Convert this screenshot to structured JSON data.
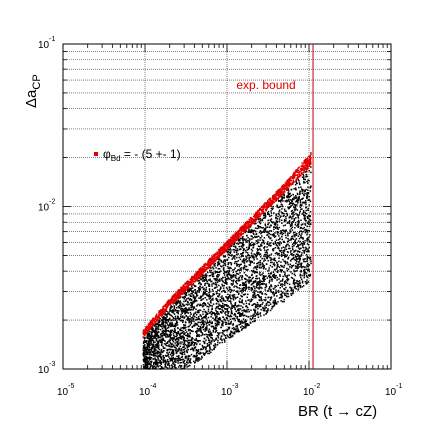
{
  "chart_data": {
    "type": "scatter",
    "xscale": "log",
    "yscale": "log",
    "xlim": [
      1e-05,
      0.1
    ],
    "ylim": [
      0.001,
      0.1
    ],
    "grid": true,
    "xlabel": {
      "prefix": "BR (t ",
      "arrow": "→",
      "suffix": " cZ)"
    },
    "ylabel": {
      "main": "Δa",
      "sub": "CP"
    },
    "x_ticks": [
      {
        "value": 1e-05,
        "base": "10",
        "exp": "-5"
      },
      {
        "value": 0.0001,
        "base": "10",
        "exp": "-4"
      },
      {
        "value": 0.001,
        "base": "10",
        "exp": "-3"
      },
      {
        "value": 0.01,
        "base": "10",
        "exp": "-2"
      },
      {
        "value": 0.1,
        "base": "10",
        "exp": "-1"
      }
    ],
    "y_ticks": [
      {
        "value": 0.001,
        "base": "10",
        "exp": "-3"
      },
      {
        "value": 0.01,
        "base": "10",
        "exp": "-2"
      },
      {
        "value": 0.1,
        "base": "10",
        "exp": "-1"
      }
    ],
    "legend": {
      "placement": "top-left",
      "marker_color": "#e00000",
      "symbol": "φ",
      "sub": "Bd",
      "rest": " = - (5 +- 1)"
    },
    "annotations": [
      {
        "text": "exp. bound",
        "color": "#e00000",
        "x": 0.0013,
        "y": 0.053
      }
    ],
    "bound_line": {
      "x": 0.0112,
      "color": "#c00000"
    },
    "series": [
      {
        "marker_color": "#000000",
        "region": {
          "x_range": [
            9.5e-05,
            0.0106
          ],
          "upper_edge": [
            [
              9.5e-05,
              0.00155
            ],
            [
              0.00012,
              0.0018
            ],
            [
              0.0002,
              0.0024
            ],
            [
              0.0005,
              0.0038
            ],
            [
              0.001,
              0.0054
            ],
            [
              0.002,
              0.0077
            ],
            [
              0.005,
              0.0122
            ],
            [
              0.0106,
              0.018
            ]
          ],
          "lower_edge": [
            [
              9.5e-05,
              0.001
            ],
            [
              0.0003,
              0.001
            ],
            [
              0.0005,
              0.00115
            ],
            [
              0.001,
              0.0015
            ],
            [
              0.002,
              0.0019
            ],
            [
              0.005,
              0.0026
            ],
            [
              0.0106,
              0.0035
            ]
          ]
        }
      },
      {
        "marker_color": "#e00000",
        "region": {
          "x_range": [
            9.5e-05,
            0.0106
          ],
          "upper_edge": [
            [
              9.5e-05,
              0.00172
            ],
            [
              0.00012,
              0.002
            ],
            [
              0.0002,
              0.0027
            ],
            [
              0.0005,
              0.0043
            ],
            [
              0.001,
              0.0061
            ],
            [
              0.002,
              0.0087
            ],
            [
              0.005,
              0.0138
            ],
            [
              0.0106,
              0.0215
            ]
          ],
          "lower_edge": [
            [
              9.5e-05,
              0.00155
            ],
            [
              0.00012,
              0.0018
            ],
            [
              0.0002,
              0.0024
            ],
            [
              0.0005,
              0.0038
            ],
            [
              0.001,
              0.0054
            ],
            [
              0.002,
              0.0077
            ],
            [
              0.005,
              0.0122
            ],
            [
              0.0106,
              0.018
            ]
          ]
        }
      }
    ]
  }
}
